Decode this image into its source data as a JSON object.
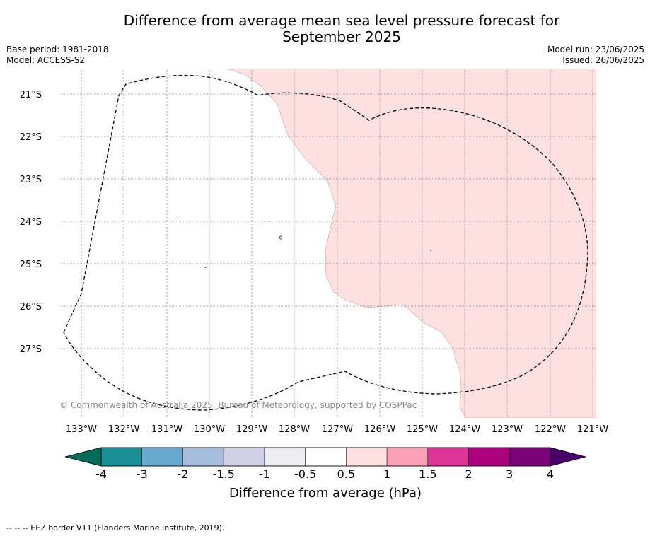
{
  "title_line1": "Difference from average mean sea level pressure forecast for",
  "title_line2": "September 2025",
  "base_period": "Base period: 1981-2018",
  "model": "Model: ACCESS-S2",
  "model_run": "Model run: 23/06/2025",
  "issued": "Issued: 26/06/2025",
  "copyright": "© Commonwealth of Australia 2025, Bureau of Meteorology, supported by COSPPac",
  "footnote": "--  --  -- EEZ border V11 (Flanders Marine Institute, 2019).",
  "lat_labels": [
    "21°S",
    "22°S",
    "23°S",
    "24°S",
    "25°S",
    "26°S",
    "27°S"
  ],
  "lon_labels": [
    "133°W",
    "132°W",
    "131°W",
    "130°W",
    "129°W",
    "128°W",
    "127°W",
    "126°W",
    "125°W",
    "124°W",
    "123°W",
    "122°W",
    "121°W"
  ],
  "colorbar": {
    "label": "Difference from average (hPa)",
    "ticks": [
      "-4",
      "-3",
      "-2",
      "-1.5",
      "-1",
      "-0.5",
      "0.5",
      "1",
      "1.5",
      "2",
      "3",
      "4"
    ],
    "colors": [
      "#1a9096",
      "#67a9cf",
      "#a6bddb",
      "#d0d1e6",
      "#ececf1",
      "#ffffff",
      "#fde0e0",
      "#fa9fb5",
      "#dd3497",
      "#ae017e",
      "#7a0177"
    ],
    "under_color": "#016c59",
    "over_color": "#49006a"
  },
  "colors": {
    "positive_fill": "#fde0e0",
    "grid": "#555555",
    "eez": "#000000"
  }
}
